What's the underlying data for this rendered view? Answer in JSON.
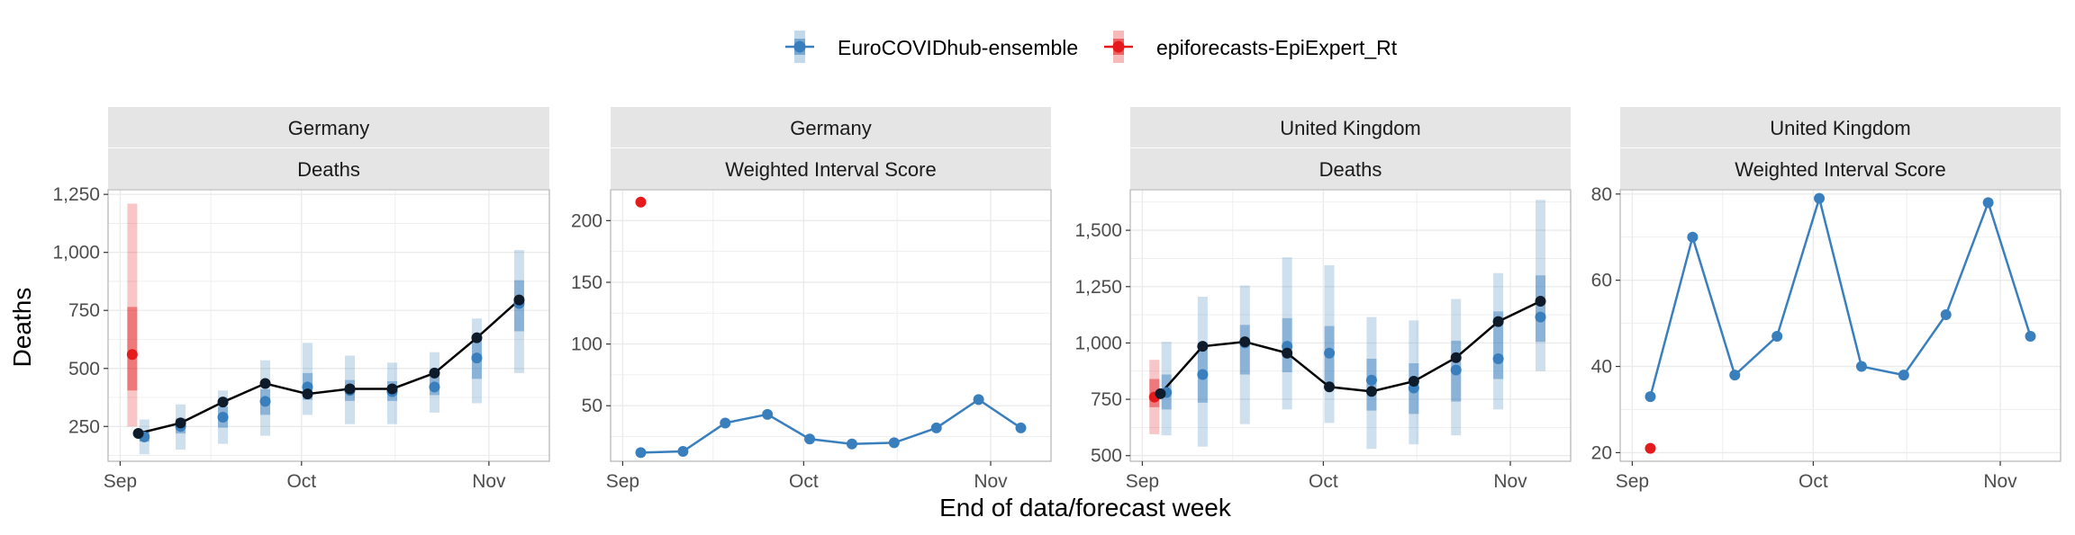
{
  "figure": {
    "ylabel": "Deaths",
    "xlabel": "End of data/forecast week"
  },
  "legend": {
    "position": "top",
    "entries": [
      {
        "label": "EuroCOVIDhub-ensemble",
        "color": "#3a7fbd"
      },
      {
        "label": "epiforecasts-EpiExpert_Rt",
        "color": "#e41a1c"
      }
    ]
  },
  "colors": {
    "ensemble": "#3a7fbd",
    "epiexpert": "#e41a1c",
    "truth": "#000000",
    "strip_bg": "#e5e5e5",
    "grid": "#ebebeb",
    "panel_border": "#b3b3b3"
  },
  "chart_data": [
    {
      "type": "line",
      "strip": [
        "Germany",
        "Deaths"
      ],
      "x_ticks": [
        {
          "label": "Sep",
          "day": 0
        },
        {
          "label": "Oct",
          "day": 30
        },
        {
          "label": "Nov",
          "day": 61
        }
      ],
      "xlim": [
        -2,
        71
      ],
      "y_ticks": [
        "250",
        "500",
        "750",
        "1,000",
        "1,250"
      ],
      "y_tick_values": [
        250,
        500,
        750,
        1000,
        1250
      ],
      "ylim": [
        100,
        1270
      ],
      "grid": true,
      "truth": {
        "name": "Deaths",
        "days": [
          3,
          10,
          17,
          24,
          31,
          38,
          45,
          52,
          59,
          66
        ],
        "values": [
          220,
          265,
          355,
          435,
          390,
          412,
          412,
          480,
          632,
          795
        ]
      },
      "forecasts": [
        {
          "model": "EuroCOVIDhub-ensemble",
          "color": "#3a7fbd",
          "days": [
            4,
            10,
            17,
            24,
            31,
            38,
            45,
            52,
            59,
            66
          ],
          "median": [
            205,
            250,
            290,
            358,
            420,
            405,
            400,
            420,
            545,
            780
          ],
          "inner": [
            [
              185,
              230
            ],
            [
              220,
              285
            ],
            [
              245,
              335
            ],
            [
              300,
              410
            ],
            [
              365,
              480
            ],
            [
              360,
              450
            ],
            [
              360,
              445
            ],
            [
              385,
              470
            ],
            [
              455,
              640
            ],
            [
              660,
              880
            ]
          ],
          "outer": [
            [
              130,
              280
            ],
            [
              150,
              345
            ],
            [
              175,
              405
            ],
            [
              210,
              535
            ],
            [
              300,
              610
            ],
            [
              260,
              555
            ],
            [
              260,
              525
            ],
            [
              310,
              570
            ],
            [
              350,
              715
            ],
            [
              480,
              1010
            ]
          ]
        },
        {
          "model": "epiforecasts-EpiExpert_Rt",
          "color": "#e41a1c",
          "days": [
            2
          ],
          "median": [
            560
          ],
          "inner": [
            [
              405,
              765
            ]
          ],
          "outer": [
            [
              250,
              1210
            ]
          ]
        }
      ]
    },
    {
      "type": "line",
      "strip": [
        "Germany",
        "Weighted Interval Score"
      ],
      "x_ticks": [
        {
          "label": "Sep",
          "day": 0
        },
        {
          "label": "Oct",
          "day": 30
        },
        {
          "label": "Nov",
          "day": 61
        }
      ],
      "xlim": [
        -2,
        71
      ],
      "y_ticks": [
        "50",
        "100",
        "150",
        "200"
      ],
      "y_tick_values": [
        50,
        100,
        150,
        200
      ],
      "ylim": [
        5,
        225
      ],
      "grid": true,
      "series": [
        {
          "name": "EuroCOVIDhub-ensemble",
          "color": "#3a7fbd",
          "days": [
            3,
            10,
            17,
            24,
            31,
            38,
            45,
            52,
            59,
            66
          ],
          "values": [
            12,
            13,
            36,
            43,
            23,
            19,
            20,
            32,
            55,
            32
          ],
          "line": true
        },
        {
          "name": "epiforecasts-EpiExpert_Rt",
          "color": "#e41a1c",
          "days": [
            3
          ],
          "values": [
            215
          ],
          "line": false
        }
      ]
    },
    {
      "type": "line",
      "strip": [
        "United Kingdom",
        "Deaths"
      ],
      "x_ticks": [
        {
          "label": "Sep",
          "day": 0
        },
        {
          "label": "Oct",
          "day": 30
        },
        {
          "label": "Nov",
          "day": 61
        }
      ],
      "xlim": [
        -2,
        71
      ],
      "y_ticks": [
        "500",
        "750",
        "1,000",
        "1,250",
        "1,500"
      ],
      "y_tick_values": [
        500,
        750,
        1000,
        1250,
        1500
      ],
      "ylim": [
        475,
        1680
      ],
      "grid": true,
      "truth": {
        "name": "Deaths",
        "days": [
          3,
          10,
          17,
          24,
          31,
          38,
          45,
          52,
          59,
          66
        ],
        "values": [
          775,
          985,
          1005,
          955,
          805,
          785,
          830,
          935,
          1095,
          1185
        ]
      },
      "forecasts": [
        {
          "model": "EuroCOVIDhub-ensemble",
          "color": "#3a7fbd",
          "days": [
            4,
            10,
            17,
            24,
            31,
            38,
            45,
            52,
            59,
            66
          ],
          "median": [
            780,
            860,
            1000,
            985,
            955,
            835,
            800,
            880,
            930,
            1115
          ],
          "inner": [
            [
              705,
              860
            ],
            [
              735,
              1000
            ],
            [
              860,
              1080
            ],
            [
              870,
              1110
            ],
            [
              810,
              1075
            ],
            [
              700,
              930
            ],
            [
              685,
              910
            ],
            [
              740,
              1010
            ],
            [
              840,
              1140
            ],
            [
              1005,
              1300
            ]
          ],
          "outer": [
            [
              590,
              1005
            ],
            [
              540,
              1205
            ],
            [
              640,
              1255
            ],
            [
              705,
              1380
            ],
            [
              645,
              1345
            ],
            [
              530,
              1115
            ],
            [
              550,
              1100
            ],
            [
              590,
              1195
            ],
            [
              705,
              1310
            ],
            [
              875,
              1635
            ]
          ]
        },
        {
          "model": "epiforecasts-EpiExpert_Rt",
          "color": "#e41a1c",
          "days": [
            2
          ],
          "median": [
            760
          ],
          "inner": [
            [
              715,
              840
            ]
          ],
          "outer": [
            [
              595,
              925
            ]
          ]
        }
      ]
    },
    {
      "type": "line",
      "strip": [
        "United Kingdom",
        "Weighted Interval Score"
      ],
      "x_ticks": [
        {
          "label": "Sep",
          "day": 0
        },
        {
          "label": "Oct",
          "day": 30
        },
        {
          "label": "Nov",
          "day": 61
        }
      ],
      "xlim": [
        -2,
        71
      ],
      "y_ticks": [
        "20",
        "40",
        "60",
        "80"
      ],
      "y_tick_values": [
        20,
        40,
        60,
        80
      ],
      "ylim": [
        18,
        81
      ],
      "grid": true,
      "series": [
        {
          "name": "EuroCOVIDhub-ensemble",
          "color": "#3a7fbd",
          "days": [
            3,
            10,
            17,
            24,
            31,
            38,
            45,
            52,
            59,
            66
          ],
          "values": [
            33,
            70,
            38,
            47,
            79,
            40,
            38,
            52,
            78,
            47
          ],
          "line": true
        },
        {
          "name": "epiforecasts-EpiExpert_Rt",
          "color": "#e41a1c",
          "days": [
            3
          ],
          "values": [
            21
          ],
          "line": false
        }
      ]
    }
  ]
}
